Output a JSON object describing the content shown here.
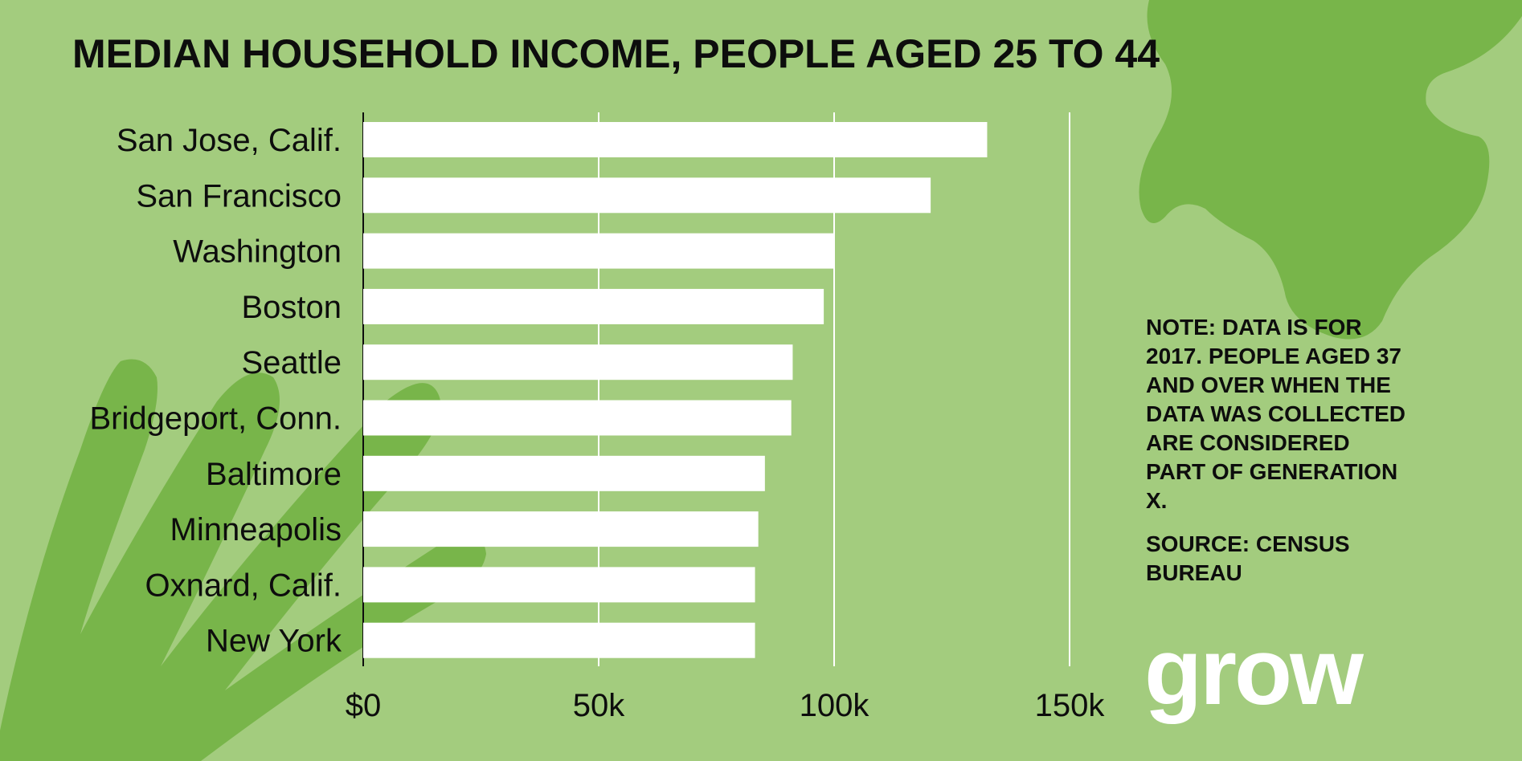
{
  "title": "MEDIAN HOUSEHOLD INCOME, PEOPLE AGED 25 TO 44",
  "note": "NOTE: DATA IS FOR 2017. PEOPLE AGED 37 AND OVER WHEN THE DATA WAS COLLECTED ARE CONSIDERED PART OF GENERATION X.",
  "source": "SOURCE: CENSUS BUREAU",
  "logo": "grow",
  "colors": {
    "background": "#a3cc7e",
    "shape": "#78b54a",
    "bar": "#ffffff",
    "gridline": "#ffffff",
    "text": "#0d0d0d"
  },
  "chart_data": {
    "type": "bar",
    "orientation": "horizontal",
    "title": "MEDIAN HOUSEHOLD INCOME, PEOPLE AGED 25 TO 44",
    "categories": [
      "San Jose, Calif.",
      "San Francisco",
      "Washington",
      "Boston",
      "Seattle",
      "Bridgeport, Conn.",
      "Baltimore",
      "Minneapolis",
      "Oxnard, Calif.",
      "New York"
    ],
    "values": [
      132500,
      120500,
      100000,
      97800,
      91200,
      90900,
      85300,
      83900,
      83200,
      83200
    ],
    "xlim": [
      0,
      150000
    ],
    "xticks": [
      0,
      50000,
      100000,
      150000
    ],
    "xtick_labels": [
      "$0",
      "50k",
      "100k",
      "150k"
    ],
    "xlabel": "",
    "ylabel": "",
    "grid": true,
    "legend": "none"
  }
}
